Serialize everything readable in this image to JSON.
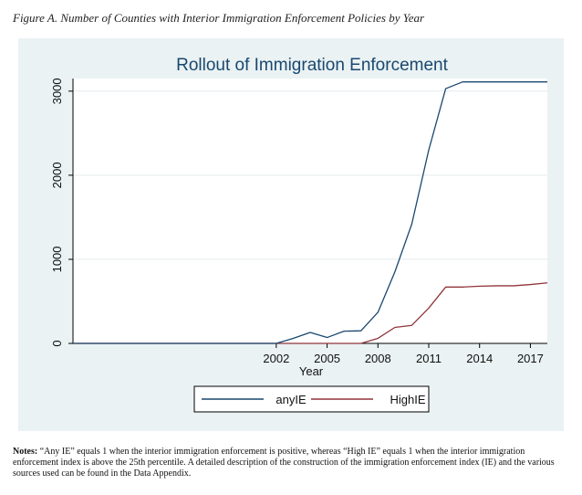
{
  "figure_caption": "Figure A. Number of Counties with Interior Immigration Enforcement Policies by Year",
  "notes": {
    "label": "Notes:",
    "text": "“Any IE” equals 1 when the interior immigration enforcement is positive, whereas “High IE” equals 1 when the interior immigration enforcement index is above the 25th percentile.  A detailed description of the construction of the immigration enforcement index (IE) and the various sources used can be found in the Data Appendix."
  },
  "colors": {
    "frame_bg": "#eaf2f3",
    "plot_bg": "#ffffff",
    "anyIE": "#1a476f",
    "HighIE": "#90353b",
    "grid": "#e4ebee"
  },
  "chart_data": {
    "type": "line",
    "title": "Rollout of Immigration Enforcement",
    "xlabel": "Year",
    "ylabel": "",
    "xlim": [
      1990,
      2018
    ],
    "ylim": [
      0,
      3150
    ],
    "xticks": [
      2002,
      2005,
      2008,
      2011,
      2014,
      2017
    ],
    "yticks": [
      0,
      1000,
      2000,
      3000
    ],
    "legend_position": "bottom",
    "grid": true,
    "x": [
      1990,
      1991,
      1992,
      1993,
      1994,
      1995,
      1996,
      1997,
      1998,
      1999,
      2000,
      2001,
      2002,
      2003,
      2004,
      2005,
      2006,
      2007,
      2008,
      2009,
      2010,
      2011,
      2012,
      2013,
      2014,
      2015,
      2016,
      2017,
      2018
    ],
    "series": [
      {
        "name": "anyIE",
        "values": [
          0,
          0,
          0,
          0,
          0,
          0,
          0,
          0,
          0,
          0,
          0,
          0,
          0,
          60,
          130,
          70,
          145,
          150,
          370,
          850,
          1420,
          2300,
          3030,
          3110,
          3110,
          3110,
          3110,
          3110,
          3110
        ]
      },
      {
        "name": "HighIE",
        "values": [
          0,
          0,
          0,
          0,
          0,
          0,
          0,
          0,
          0,
          0,
          0,
          0,
          0,
          0,
          0,
          0,
          0,
          0,
          60,
          190,
          215,
          420,
          670,
          670,
          680,
          685,
          685,
          700,
          720
        ]
      }
    ]
  }
}
